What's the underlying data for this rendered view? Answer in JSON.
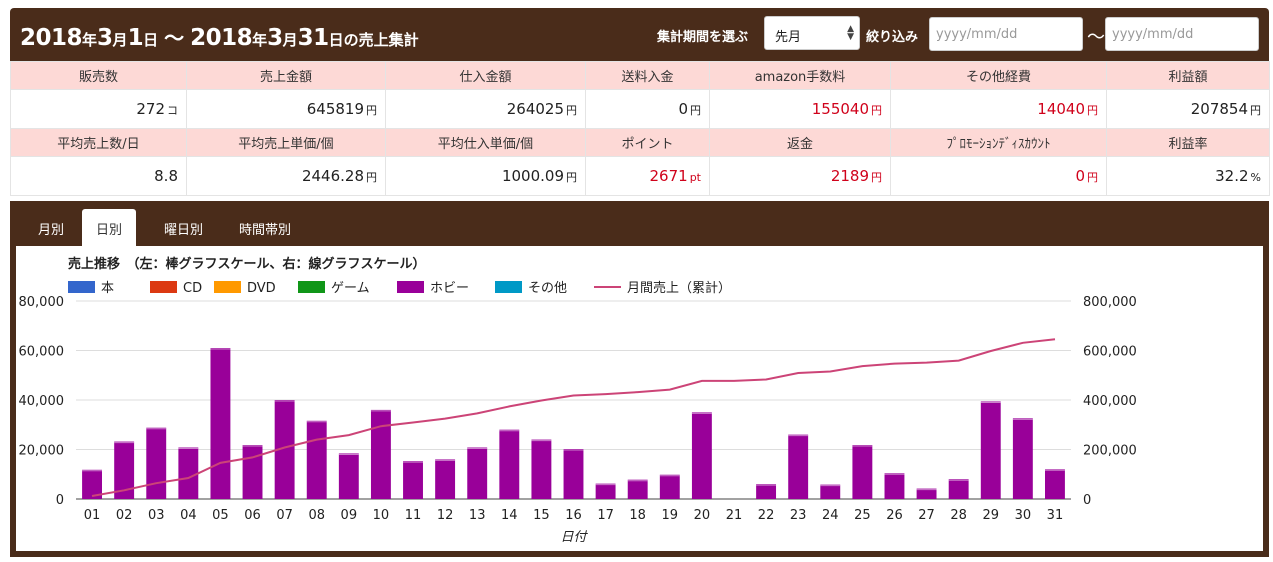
{
  "header": {
    "range": {
      "y1": "2018",
      "nen1": "年",
      "m1": "3",
      "tsuki1": "月",
      "d1": "1",
      "nichi1": "日",
      "wave": "～",
      "y2": "2018",
      "nen2": "年",
      "m2": "3",
      "tsuki2": "月",
      "d2": "31",
      "nichi2": "日の売上集計"
    },
    "period_label": "集計期間を選ぶ",
    "period_value": "先月",
    "filter_label": "絞り込み",
    "date_from_placeholder": "yyyy/mm/dd",
    "date_to_placeholder": "yyyy/mm/dd",
    "tilde": "～"
  },
  "stats": {
    "row1_headers": [
      "販売数",
      "売上金額",
      "仕入金額",
      "送料入金",
      "amazon手数料",
      "その他経費",
      "利益額"
    ],
    "row1_values": [
      {
        "v": "272",
        "u": "コ",
        "red": false
      },
      {
        "v": "645819",
        "u": "円",
        "red": false
      },
      {
        "v": "264025",
        "u": "円",
        "red": false
      },
      {
        "v": "0",
        "u": "円",
        "red": false
      },
      {
        "v": "155040",
        "u": "円",
        "red": true
      },
      {
        "v": "14040",
        "u": "円",
        "red": true
      },
      {
        "v": "207854",
        "u": "円",
        "red": false
      }
    ],
    "row2_headers": [
      "平均売上数/日",
      "平均売上単価/個",
      "平均仕入単価/個",
      "ポイント",
      "返金",
      "ﾌﾟﾛﾓｰｼｮﾝﾃﾞｨｽｶｳﾝﾄ",
      "利益率"
    ],
    "row2_values": [
      {
        "v": "8.8",
        "u": "",
        "red": false
      },
      {
        "v": "2446.28",
        "u": "円",
        "red": false
      },
      {
        "v": "1000.09",
        "u": "円",
        "red": false
      },
      {
        "v": "2671",
        "u": "pt",
        "red": true
      },
      {
        "v": "2189",
        "u": "円",
        "red": true
      },
      {
        "v": "0",
        "u": "円",
        "red": true
      },
      {
        "v": "32.2",
        "u": "%",
        "red": false
      }
    ]
  },
  "tabs": [
    {
      "label": "月別",
      "active": false
    },
    {
      "label": "日別",
      "active": true
    },
    {
      "label": "曜日別",
      "active": false
    },
    {
      "label": "時間帯別",
      "active": false
    }
  ],
  "colors": {
    "header_bg": "#4a2c1a",
    "stat_header_bg": "#fdd9d6",
    "negative_red": "#d0021b",
    "bar_hobby": "#990099",
    "line_cumulative": "#cc4477"
  },
  "chart_data": {
    "type": "bar",
    "title": "売上推移　（左：棒グラフスケール、右：線グラフスケール）",
    "xlabel": "日付",
    "ylabel": "",
    "ylim": [
      0,
      80000
    ],
    "y2lim": [
      0,
      800000
    ],
    "y_ticks": [
      "0",
      "20,000",
      "40,000",
      "60,000",
      "80,000"
    ],
    "y2_ticks": [
      "0",
      "200,000",
      "400,000",
      "600,000",
      "800,000"
    ],
    "grid": true,
    "legend_position": "top-left",
    "categories": [
      "01",
      "02",
      "03",
      "04",
      "05",
      "06",
      "07",
      "08",
      "09",
      "10",
      "11",
      "12",
      "13",
      "14",
      "15",
      "16",
      "17",
      "18",
      "19",
      "20",
      "21",
      "22",
      "23",
      "24",
      "25",
      "26",
      "27",
      "28",
      "29",
      "30",
      "31"
    ],
    "series": [
      {
        "name": "本",
        "type": "bar",
        "color": "#3366cc",
        "values": [
          0,
          0,
          0,
          0,
          0,
          0,
          0,
          0,
          0,
          0,
          0,
          0,
          0,
          0,
          0,
          0,
          0,
          0,
          0,
          0,
          0,
          0,
          0,
          0,
          0,
          0,
          0,
          0,
          0,
          0,
          0
        ]
      },
      {
        "name": "CD",
        "type": "bar",
        "color": "#dc3912",
        "values": [
          0,
          0,
          0,
          0,
          0,
          0,
          0,
          0,
          0,
          0,
          0,
          0,
          0,
          0,
          0,
          0,
          0,
          0,
          0,
          0,
          0,
          0,
          0,
          0,
          0,
          0,
          0,
          0,
          0,
          0,
          0
        ]
      },
      {
        "name": "DVD",
        "type": "bar",
        "color": "#ff9900",
        "values": [
          0,
          0,
          0,
          0,
          0,
          0,
          0,
          0,
          0,
          0,
          0,
          0,
          0,
          0,
          0,
          0,
          0,
          0,
          0,
          0,
          0,
          0,
          0,
          0,
          0,
          0,
          0,
          0,
          0,
          0,
          0
        ]
      },
      {
        "name": "ゲーム",
        "type": "bar",
        "color": "#109618",
        "values": [
          0,
          0,
          0,
          0,
          0,
          0,
          0,
          0,
          0,
          0,
          0,
          0,
          0,
          0,
          0,
          0,
          0,
          0,
          0,
          0,
          0,
          0,
          0,
          0,
          0,
          0,
          0,
          0,
          0,
          0,
          0
        ]
      },
      {
        "name": "ホビー",
        "type": "bar",
        "color": "#990099",
        "values": [
          11800,
          23200,
          28800,
          20800,
          61000,
          21800,
          40000,
          31600,
          18400,
          36000,
          15300,
          16000,
          20800,
          28000,
          24000,
          20200,
          6200,
          7800,
          9800,
          35000,
          0,
          6000,
          26000,
          5800,
          21800,
          10400,
          4200,
          8000,
          39400,
          32600,
          12000
        ]
      },
      {
        "name": "その他",
        "type": "bar",
        "color": "#0099c6",
        "values": [
          0,
          0,
          0,
          0,
          0,
          0,
          0,
          0,
          0,
          0,
          0,
          0,
          0,
          0,
          0,
          0,
          0,
          0,
          0,
          0,
          0,
          0,
          0,
          0,
          0,
          0,
          0,
          0,
          0,
          0,
          0
        ]
      },
      {
        "name": "月間売上（累計）",
        "type": "line",
        "axis": "right",
        "color": "#cc4477",
        "values": [
          12000,
          35000,
          64000,
          85000,
          146000,
          168000,
          208000,
          240000,
          258000,
          294000,
          309000,
          325000,
          346000,
          374000,
          398000,
          418000,
          424000,
          432000,
          442000,
          477000,
          477000,
          483000,
          509000,
          515000,
          537000,
          547000,
          551000,
          559000,
          598000,
          631000,
          645819
        ]
      }
    ]
  }
}
